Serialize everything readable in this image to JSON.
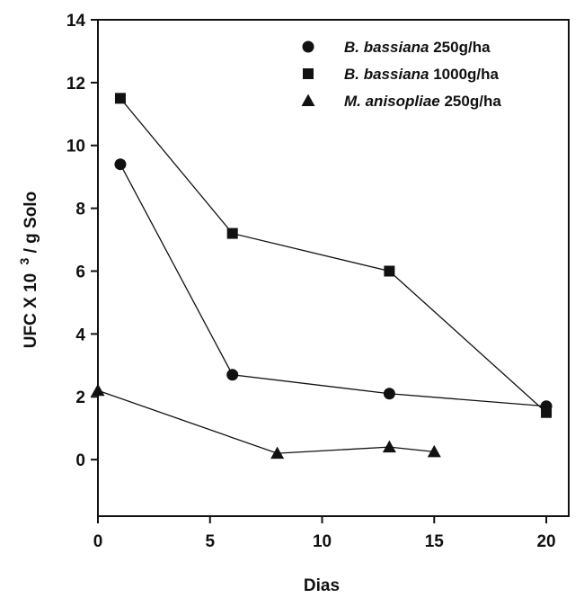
{
  "chart_data": {
    "type": "line",
    "xlabel": "Dias",
    "ylabel_parts": {
      "prefix": "UFC X 10",
      "superscript": "3",
      "suffix": " / g Solo"
    },
    "xlim": [
      0,
      21
    ],
    "ylim": [
      -1.8,
      14
    ],
    "xticks": [
      0,
      5,
      10,
      15,
      20
    ],
    "yticks": [
      0,
      2,
      4,
      6,
      8,
      10,
      12,
      14
    ],
    "grid": false,
    "legend_position": "top-right",
    "series": [
      {
        "species": "B. bassiana",
        "dose": "250g/ha",
        "marker": "circle",
        "points": [
          [
            1,
            9.4
          ],
          [
            6,
            2.7
          ],
          [
            13,
            2.1
          ],
          [
            20,
            1.7
          ]
        ]
      },
      {
        "species": "B. bassiana",
        "dose": "1000g/ha",
        "marker": "square",
        "points": [
          [
            1,
            11.5
          ],
          [
            6,
            7.2
          ],
          [
            13,
            6.0
          ],
          [
            20,
            1.5
          ]
        ]
      },
      {
        "species": "M. anisopliae",
        "dose": "250g/ha",
        "marker": "triangle",
        "points": [
          [
            0,
            2.2
          ],
          [
            8,
            0.2
          ],
          [
            13,
            0.4
          ],
          [
            15,
            0.25
          ]
        ]
      }
    ]
  }
}
